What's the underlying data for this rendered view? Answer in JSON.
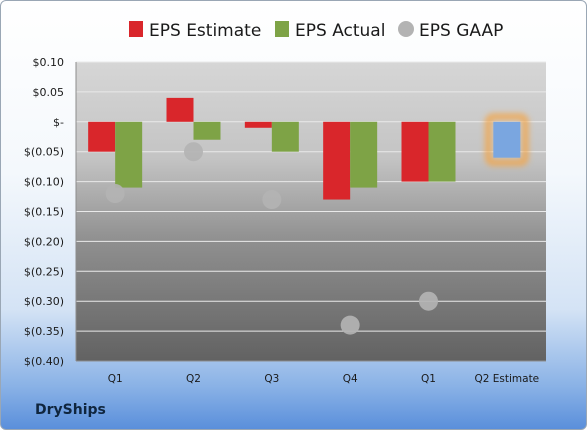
{
  "company": "DryShips",
  "colors": {
    "estimate": "#d9262b",
    "actual": "#7ea346",
    "gaap": "#b3b3b3",
    "highlight_fill": "#7aa6e0",
    "highlight_glow": "#f4a443"
  },
  "chart_data": {
    "type": "bar",
    "categories": [
      "Q1",
      "Q2",
      "Q3",
      "Q4",
      "Q1",
      "Q2 Estimate"
    ],
    "ylim": [
      -0.4,
      0.1
    ],
    "yticks": [
      0.1,
      0.05,
      0.0,
      -0.05,
      -0.1,
      -0.15,
      -0.2,
      -0.25,
      -0.3,
      -0.35,
      -0.4
    ],
    "ytick_labels": [
      "$0.10",
      "$0.05",
      "$-",
      "$(0.05)",
      "$(0.10)",
      "$(0.15)",
      "$(0.20)",
      "$(0.25)",
      "$(0.30)",
      "$(0.35)",
      "$(0.40)"
    ],
    "grid": true,
    "legend_position": "top",
    "series": [
      {
        "name": "EPS Estimate",
        "kind": "bar",
        "values": [
          -0.05,
          0.04,
          -0.01,
          -0.13,
          -0.1,
          null
        ]
      },
      {
        "name": "EPS Actual",
        "kind": "bar",
        "values": [
          -0.11,
          -0.03,
          -0.05,
          -0.11,
          -0.1,
          -0.06
        ]
      },
      {
        "name": "EPS GAAP",
        "kind": "marker",
        "values": [
          -0.12,
          -0.05,
          -0.13,
          -0.34,
          -0.3,
          null
        ]
      }
    ],
    "highlight_category": "Q2 Estimate"
  }
}
